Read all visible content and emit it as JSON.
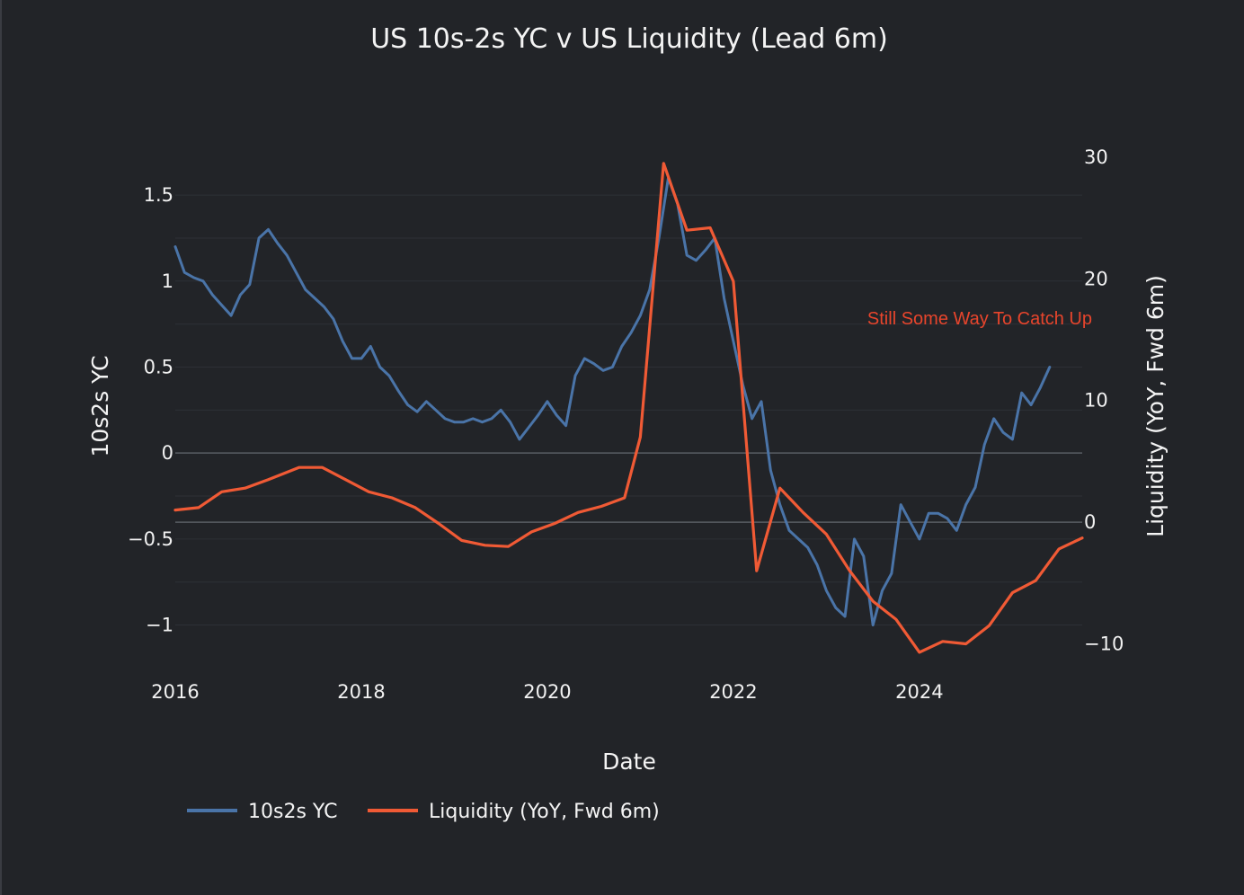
{
  "chart_data": {
    "type": "line",
    "title": "US 10s-2s YC v US Liquidity (Lead 6m)",
    "xlabel": "Date",
    "ylabel": "10s2s YC",
    "y2label": "Liquidity (YoY, Fwd 6m)",
    "xlim": [
      2016.0,
      2025.75
    ],
    "ylim": [
      -1.18,
      1.72
    ],
    "y2lim": [
      -11.0,
      30.0
    ],
    "x_ticks": [
      2016,
      2018,
      2020,
      2022,
      2024
    ],
    "x_tick_labels": [
      "2016",
      "2018",
      "2020",
      "2022",
      "2024"
    ],
    "y_ticks": [
      -1,
      -0.5,
      0,
      0.5,
      1,
      1.5
    ],
    "y_tick_labels": [
      "−1",
      "−0.5",
      "0",
      "0.5",
      "1",
      "1.5"
    ],
    "y2_ticks": [
      -10,
      0,
      10,
      20,
      30
    ],
    "y2_tick_labels": [
      "−10",
      "0",
      "10",
      "20",
      "30"
    ],
    "grid": true,
    "legend_position": "bottom-left",
    "annotation": {
      "text": "Still Some Way To Catch Up",
      "color": "#e8452c"
    },
    "series": [
      {
        "name": "10s2s YC",
        "axis": "left",
        "color": "#4a74a8",
        "x": [
          2016.0,
          2016.1,
          2016.2,
          2016.3,
          2016.4,
          2016.5,
          2016.6,
          2016.7,
          2016.8,
          2016.9,
          2017.0,
          2017.1,
          2017.2,
          2017.3,
          2017.4,
          2017.5,
          2017.6,
          2017.7,
          2017.8,
          2017.9,
          2018.0,
          2018.1,
          2018.2,
          2018.3,
          2018.4,
          2018.5,
          2018.6,
          2018.7,
          2018.8,
          2018.9,
          2019.0,
          2019.1,
          2019.2,
          2019.3,
          2019.4,
          2019.5,
          2019.6,
          2019.7,
          2019.8,
          2019.9,
          2020.0,
          2020.1,
          2020.2,
          2020.3,
          2020.4,
          2020.5,
          2020.6,
          2020.7,
          2020.8,
          2020.9,
          2021.0,
          2021.1,
          2021.2,
          2021.3,
          2021.4,
          2021.5,
          2021.6,
          2021.7,
          2021.8,
          2021.9,
          2022.0,
          2022.1,
          2022.2,
          2022.3,
          2022.4,
          2022.5,
          2022.6,
          2022.7,
          2022.8,
          2022.9,
          2023.0,
          2023.1,
          2023.2,
          2023.3,
          2023.4,
          2023.5,
          2023.6,
          2023.7,
          2023.8,
          2023.9,
          2024.0,
          2024.1,
          2024.2,
          2024.3,
          2024.4,
          2024.5,
          2024.6,
          2024.7,
          2024.8,
          2024.9,
          2025.0,
          2025.1,
          2025.2,
          2025.3,
          2025.4
        ],
        "values": [
          1.2,
          1.05,
          1.02,
          1.0,
          0.92,
          0.86,
          0.8,
          0.92,
          0.98,
          1.25,
          1.3,
          1.22,
          1.15,
          1.05,
          0.95,
          0.9,
          0.85,
          0.78,
          0.65,
          0.55,
          0.55,
          0.62,
          0.5,
          0.45,
          0.36,
          0.28,
          0.24,
          0.3,
          0.25,
          0.2,
          0.18,
          0.18,
          0.2,
          0.18,
          0.2,
          0.25,
          0.18,
          0.08,
          0.15,
          0.22,
          0.3,
          0.22,
          0.16,
          0.45,
          0.55,
          0.52,
          0.48,
          0.5,
          0.62,
          0.7,
          0.8,
          0.95,
          1.25,
          1.6,
          1.45,
          1.15,
          1.12,
          1.18,
          1.25,
          0.9,
          0.65,
          0.4,
          0.2,
          0.3,
          -0.1,
          -0.3,
          -0.45,
          -0.5,
          -0.55,
          -0.65,
          -0.8,
          -0.9,
          -0.95,
          -0.5,
          -0.6,
          -1.0,
          -0.8,
          -0.7,
          -0.3,
          -0.4,
          -0.5,
          -0.35,
          -0.35,
          -0.38,
          -0.45,
          -0.3,
          -0.2,
          0.05,
          0.2,
          0.12,
          0.08,
          0.35,
          0.28,
          0.38,
          0.5
        ]
      },
      {
        "name": "Liquidity (YoY, Fwd 6m)",
        "axis": "right",
        "color": "#f05a35",
        "x": [
          2016.0,
          2016.25,
          2016.5,
          2016.75,
          2017.0,
          2017.33,
          2017.58,
          2017.83,
          2018.08,
          2018.33,
          2018.58,
          2018.83,
          2019.08,
          2019.33,
          2019.58,
          2019.83,
          2020.08,
          2020.33,
          2020.58,
          2020.83,
          2021.0,
          2021.25,
          2021.5,
          2021.75,
          2022.0,
          2022.25,
          2022.5,
          2022.75,
          2023.0,
          2023.25,
          2023.5,
          2023.75,
          2024.0,
          2024.25,
          2024.5,
          2024.75,
          2025.0,
          2025.25,
          2025.5,
          2025.75
        ],
        "values": [
          1.0,
          1.2,
          2.5,
          2.8,
          3.5,
          4.5,
          4.5,
          3.5,
          2.5,
          2.0,
          1.2,
          -0.1,
          -1.5,
          -1.9,
          -2.0,
          -0.8,
          -0.1,
          0.8,
          1.3,
          2.0,
          7.0,
          29.5,
          24.0,
          24.2,
          19.8,
          -4.0,
          2.8,
          0.8,
          -1.0,
          -4.0,
          -6.5,
          -8.0,
          -10.7,
          -9.8,
          -10.0,
          -8.5,
          -5.8,
          -4.8,
          -2.2,
          -1.3
        ]
      }
    ]
  }
}
